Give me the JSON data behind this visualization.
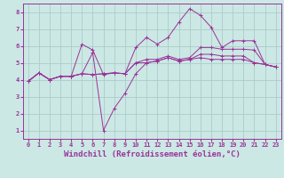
{
  "background_color": "#cce8e4",
  "grid_color": "#aacccc",
  "line_color": "#993399",
  "xlabel": "Windchill (Refroidissement éolien,°C)",
  "xlabel_fontsize": 6.5,
  "xlim": [
    -0.5,
    23.5
  ],
  "ylim": [
    0.5,
    8.5
  ],
  "xticks": [
    0,
    1,
    2,
    3,
    4,
    5,
    6,
    7,
    8,
    9,
    10,
    11,
    12,
    13,
    14,
    15,
    16,
    17,
    18,
    19,
    20,
    21,
    22,
    23
  ],
  "yticks": [
    1,
    2,
    3,
    4,
    5,
    6,
    7,
    8
  ],
  "lines": [
    {
      "x": [
        0,
        1,
        2,
        3,
        4,
        5,
        6,
        7,
        8,
        9,
        10,
        11,
        12,
        13,
        14,
        15,
        16,
        17,
        18,
        19,
        20,
        21,
        22,
        23
      ],
      "y": [
        3.9,
        4.4,
        4.0,
        4.2,
        4.2,
        4.35,
        4.3,
        4.35,
        4.4,
        4.35,
        5.9,
        6.5,
        6.1,
        6.5,
        7.4,
        8.2,
        7.8,
        7.1,
        5.9,
        6.3,
        6.3,
        6.3,
        4.9,
        4.75
      ]
    },
    {
      "x": [
        0,
        1,
        2,
        3,
        4,
        5,
        6,
        7,
        8,
        9,
        10,
        11,
        12,
        13,
        14,
        15,
        16,
        17,
        18,
        19,
        20,
        21,
        22,
        23
      ],
      "y": [
        3.9,
        4.4,
        4.0,
        4.2,
        4.2,
        6.1,
        5.75,
        4.3,
        4.4,
        4.35,
        5.0,
        5.2,
        5.2,
        5.4,
        5.2,
        5.3,
        5.9,
        5.9,
        5.8,
        5.8,
        5.8,
        5.75,
        4.9,
        4.75
      ]
    },
    {
      "x": [
        0,
        1,
        2,
        3,
        4,
        5,
        6,
        7,
        8,
        9,
        10,
        11,
        12,
        13,
        14,
        15,
        16,
        17,
        18,
        19,
        20,
        21,
        22,
        23
      ],
      "y": [
        3.9,
        4.4,
        4.0,
        4.2,
        4.2,
        4.35,
        5.6,
        1.0,
        2.3,
        3.2,
        4.35,
        5.0,
        5.1,
        5.3,
        5.1,
        5.2,
        5.5,
        5.5,
        5.4,
        5.4,
        5.4,
        5.0,
        4.9,
        4.75
      ]
    },
    {
      "x": [
        0,
        1,
        2,
        3,
        4,
        5,
        6,
        7,
        8,
        9,
        10,
        11,
        12,
        13,
        14,
        15,
        16,
        17,
        18,
        19,
        20,
        21,
        22,
        23
      ],
      "y": [
        3.9,
        4.4,
        4.0,
        4.2,
        4.2,
        4.35,
        4.3,
        4.35,
        4.4,
        4.35,
        5.0,
        5.0,
        5.1,
        5.3,
        5.1,
        5.2,
        5.3,
        5.2,
        5.2,
        5.2,
        5.2,
        5.0,
        4.9,
        4.75
      ]
    }
  ]
}
